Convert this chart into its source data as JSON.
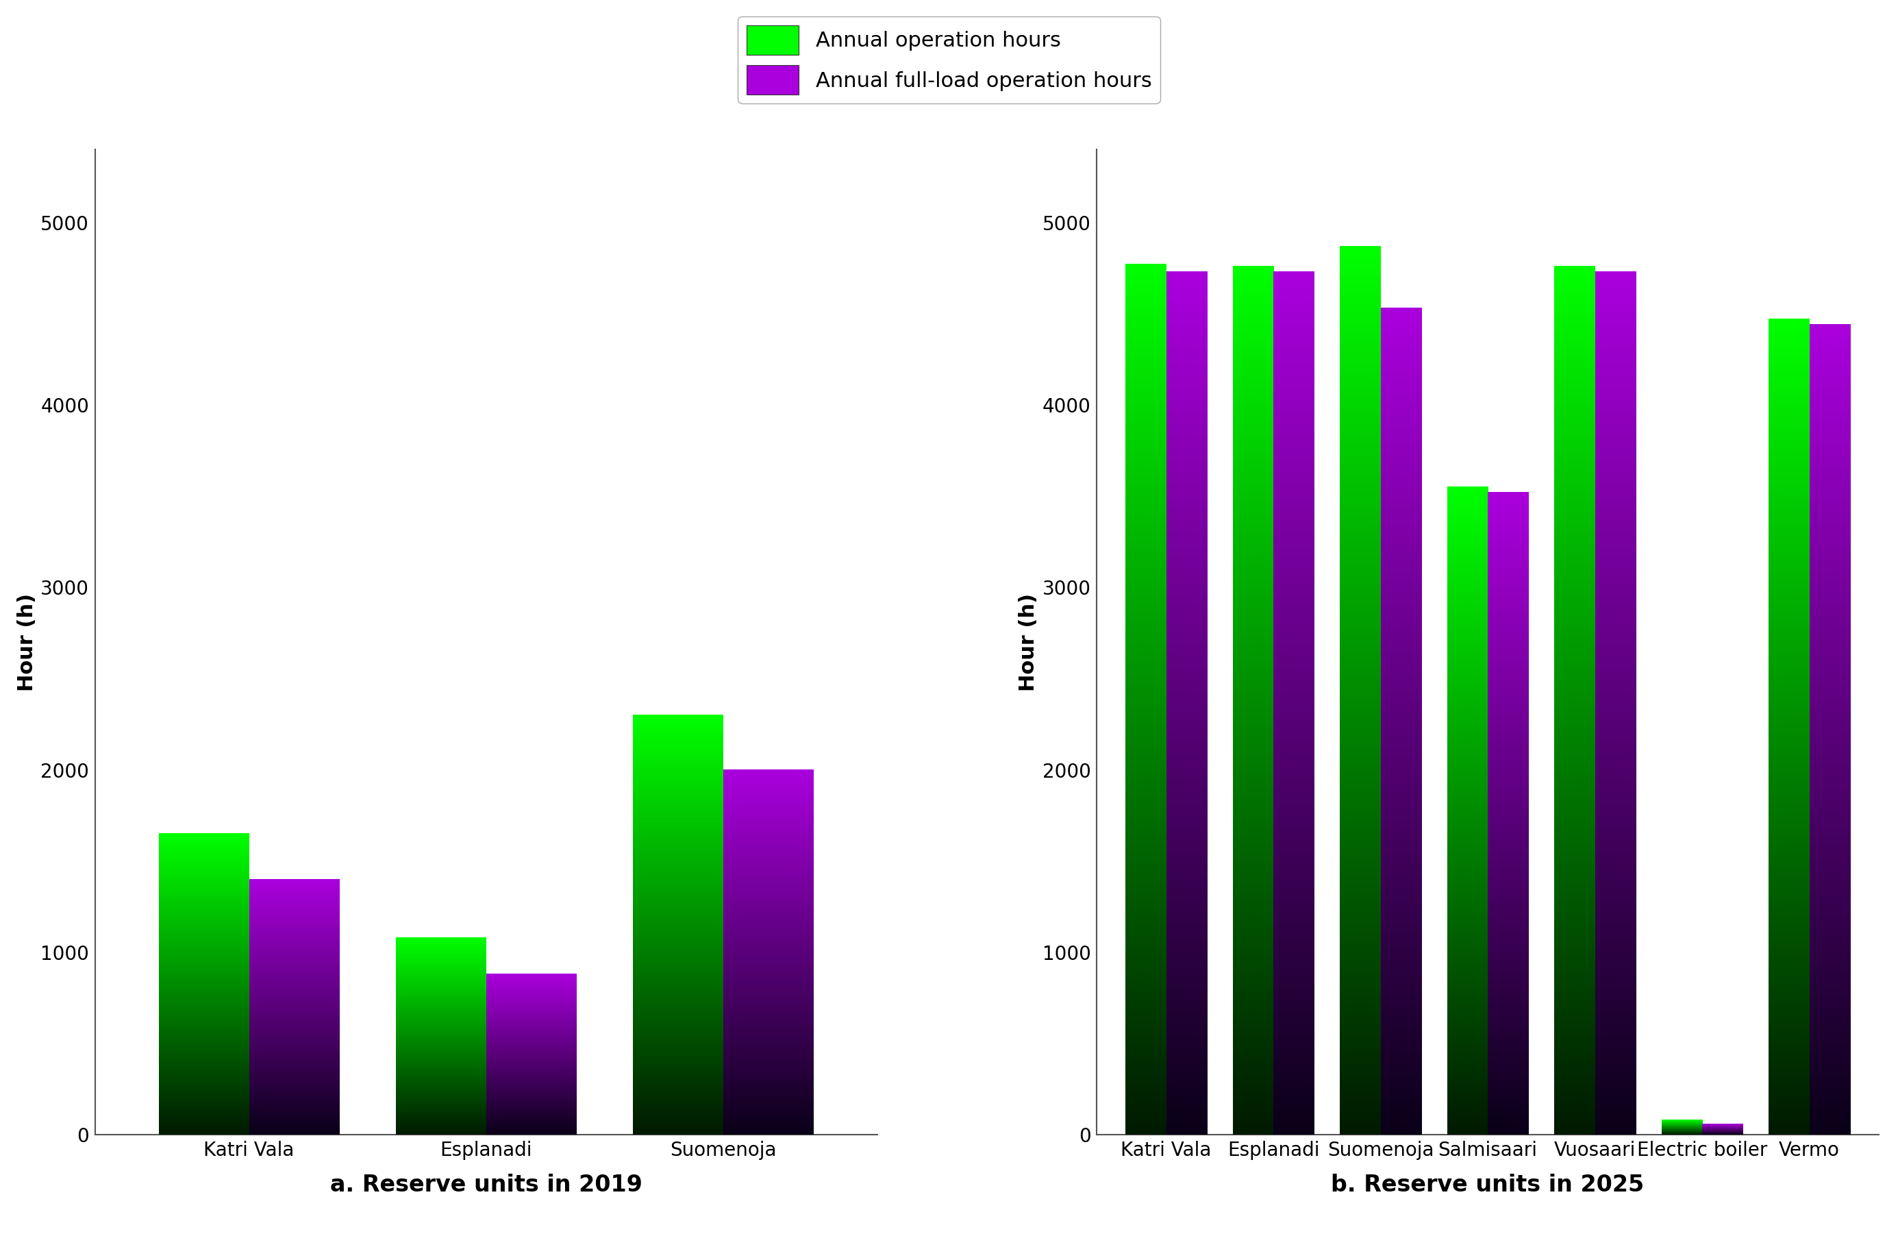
{
  "chart_a": {
    "title": "a. Reserve units in 2019",
    "categories": [
      "Katri Vala",
      "Esplanadi",
      "Suomenoja"
    ],
    "operation_hours": [
      1650,
      1080,
      2300
    ],
    "fullload_hours": [
      1400,
      880,
      2000
    ]
  },
  "chart_b": {
    "title": "b. Reserve units in 2025",
    "categories": [
      "Katri Vala",
      "Esplanadi",
      "Suomenoja",
      "Salmisaari",
      "Vuosaari",
      "Electric boiler",
      "Vermo"
    ],
    "operation_hours": [
      4770,
      4760,
      4870,
      3550,
      4760,
      80,
      4470
    ],
    "fullload_hours": [
      4730,
      4730,
      4530,
      3520,
      4730,
      60,
      4440
    ]
  },
  "legend": {
    "label_green": "Annual operation hours",
    "label_purple": "Annual full-load operation hours"
  },
  "ylabel": "Hour (h)",
  "ylim": [
    0,
    5400
  ],
  "yticks": [
    0,
    1000,
    2000,
    3000,
    4000,
    5000
  ],
  "bar_width": 0.38,
  "green_top": "#00ff00",
  "green_bottom": "#001a00",
  "purple_top": "#aa00dd",
  "purple_bottom": "#0a0018",
  "bg_color": "#ffffff",
  "axis_color": "#555555",
  "legend_fontsize": 22,
  "tick_fontsize": 20,
  "label_fontsize": 22,
  "title_fontsize": 24
}
